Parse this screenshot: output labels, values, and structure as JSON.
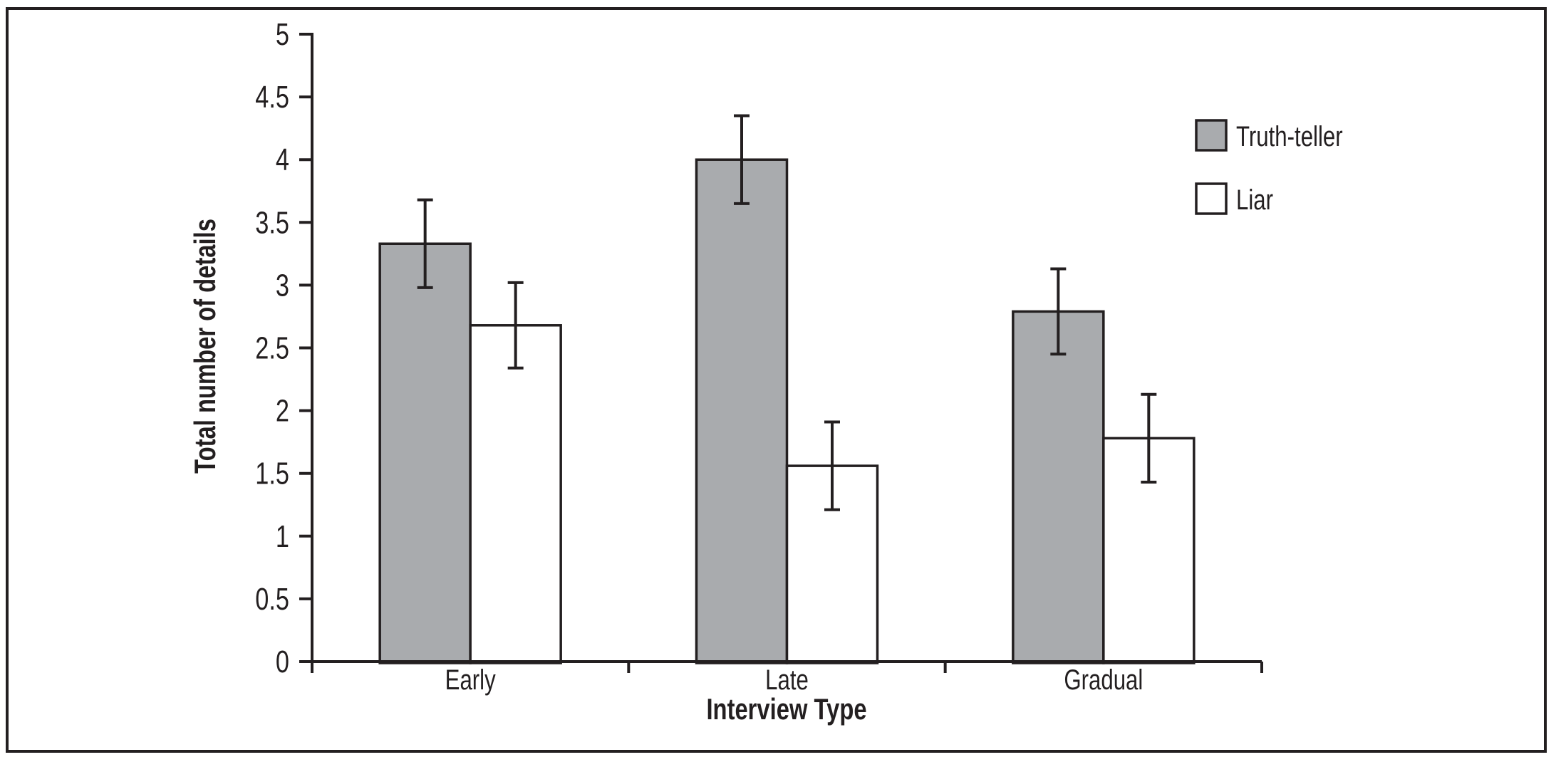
{
  "chart_data": {
    "type": "bar",
    "title": "",
    "categories": [
      "Early",
      "Late",
      "Gradual"
    ],
    "series": [
      {
        "name": "Truth-teller",
        "color": "#a9abae",
        "values": [
          3.33,
          4.0,
          2.79
        ],
        "errors": [
          0.35,
          0.35,
          0.34
        ]
      },
      {
        "name": "Liar",
        "color": "#ffffff",
        "values": [
          2.68,
          1.56,
          1.78
        ],
        "errors": [
          0.34,
          0.35,
          0.35
        ]
      }
    ],
    "xlabel": "Interview Type",
    "ylabel": "Total number of details",
    "ylim": [
      0,
      5
    ],
    "ytick_step": 0.5,
    "ytick_labels": [
      "0",
      "0.5",
      "1",
      "1.5",
      "2",
      "2.5",
      "3",
      "3.5",
      "4",
      "4.5",
      "5"
    ],
    "grid": false,
    "legend_position": "top-right-inside",
    "error_bars": true,
    "line_color": "#231f20"
  }
}
